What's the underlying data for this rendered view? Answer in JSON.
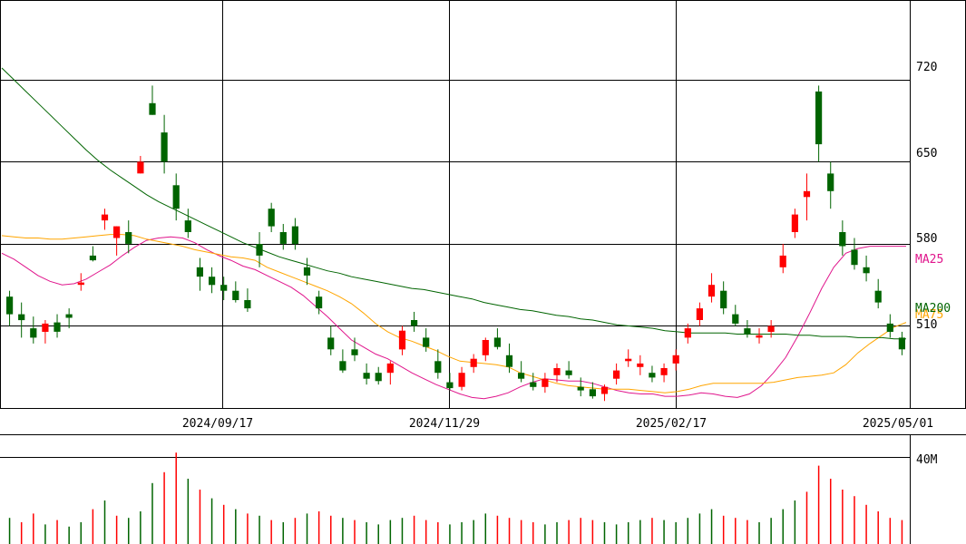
{
  "chart_data": [
    {
      "type": "candlestick",
      "title": "",
      "y_ticks": [
        510,
        580,
        650,
        720
      ],
      "y_range": [
        440,
        788
      ],
      "x_ticks": [
        "2024/09/17",
        "2024/11/29",
        "2025/02/17",
        "2025/05/01"
      ],
      "up_color": "#ff0000",
      "down_color": "#006400",
      "series": [
        {
          "name": "MA25",
          "color": "#e0158c",
          "values": [
            572,
            567,
            560,
            553,
            548,
            545,
            546,
            550,
            556,
            562,
            570,
            577,
            583,
            585,
            586,
            585,
            581,
            575,
            570,
            566,
            561,
            558,
            553,
            548,
            543,
            536,
            527,
            518,
            508,
            498,
            492,
            486,
            482,
            476,
            470,
            465,
            460,
            456,
            452,
            449,
            448,
            450,
            453,
            458,
            462,
            465,
            464,
            463,
            463,
            461,
            458,
            455,
            453,
            452,
            452,
            450,
            450,
            451,
            453,
            452,
            450,
            449,
            452,
            459,
            470,
            483,
            501,
            521,
            542,
            560,
            572,
            576,
            578,
            578,
            578,
            578
          ]
        },
        {
          "name": "MA75",
          "color": "#ffa500",
          "values": [
            587,
            586,
            585,
            585,
            584,
            584,
            585,
            586,
            587,
            588,
            588,
            587,
            584,
            582,
            580,
            578,
            575,
            573,
            571,
            569,
            568,
            566,
            560,
            556,
            552,
            548,
            544,
            540,
            535,
            529,
            521,
            512,
            505,
            500,
            497,
            493,
            489,
            484,
            480,
            479,
            478,
            477,
            475,
            470,
            467,
            464,
            461,
            459,
            458,
            457,
            456,
            456,
            456,
            455,
            454,
            453,
            454,
            456,
            459,
            461,
            461,
            461,
            461,
            461,
            462,
            464,
            466,
            467,
            468,
            470,
            477,
            487,
            495,
            502,
            509,
            513
          ]
        },
        {
          "name": "MA200",
          "color": "#006400",
          "values": [
            730,
            720,
            710,
            700,
            690,
            680,
            670,
            660,
            651,
            643,
            636,
            629,
            622,
            616,
            611,
            606,
            601,
            596,
            591,
            586,
            581,
            577,
            573,
            569,
            566,
            563,
            560,
            557,
            555,
            552,
            550,
            548,
            546,
            544,
            542,
            541,
            539,
            537,
            535,
            533,
            530,
            528,
            526,
            524,
            523,
            521,
            519,
            518,
            516,
            515,
            513,
            511,
            510,
            509,
            508,
            506,
            505,
            504,
            504,
            504,
            504,
            503,
            503,
            503,
            503,
            503,
            502,
            502,
            501,
            501,
            501,
            500,
            500,
            500,
            499,
            499
          ]
        }
      ],
      "labels": {
        "ma25": "MA25",
        "ma75": "MA75",
        "ma200": "MA200"
      },
      "candles": [
        {
          "o": 535,
          "h": 540,
          "l": 510,
          "c": 520
        },
        {
          "o": 520,
          "h": 530,
          "l": 500,
          "c": 515
        },
        {
          "o": 508,
          "h": 518,
          "l": 495,
          "c": 500
        },
        {
          "o": 505,
          "h": 515,
          "l": 495,
          "c": 512
        },
        {
          "o": 513,
          "h": 520,
          "l": 500,
          "c": 505
        },
        {
          "o": 520,
          "h": 525,
          "l": 508,
          "c": 517
        },
        {
          "o": 545,
          "h": 555,
          "l": 540,
          "c": 547
        },
        {
          "o": 570,
          "h": 578,
          "l": 565,
          "c": 566
        },
        {
          "o": 600,
          "h": 610,
          "l": 592,
          "c": 605
        },
        {
          "o": 585,
          "h": 595,
          "l": 570,
          "c": 595
        },
        {
          "o": 590,
          "h": 600,
          "l": 572,
          "c": 580
        },
        {
          "o": 640,
          "h": 655,
          "l": 640,
          "c": 650
        },
        {
          "o": 700,
          "h": 715,
          "l": 690,
          "c": 690
        },
        {
          "o": 675,
          "h": 690,
          "l": 640,
          "c": 650
        },
        {
          "o": 630,
          "h": 640,
          "l": 600,
          "c": 610
        },
        {
          "o": 600,
          "h": 610,
          "l": 585,
          "c": 590
        },
        {
          "o": 560,
          "h": 568,
          "l": 540,
          "c": 552
        },
        {
          "o": 552,
          "h": 560,
          "l": 538,
          "c": 545
        },
        {
          "o": 545,
          "h": 552,
          "l": 532,
          "c": 540
        },
        {
          "o": 540,
          "h": 548,
          "l": 530,
          "c": 532
        },
        {
          "o": 532,
          "h": 542,
          "l": 522,
          "c": 525
        },
        {
          "o": 580,
          "h": 590,
          "l": 560,
          "c": 570
        },
        {
          "o": 610,
          "h": 615,
          "l": 590,
          "c": 595
        },
        {
          "o": 590,
          "h": 597,
          "l": 575,
          "c": 580
        },
        {
          "o": 595,
          "h": 602,
          "l": 575,
          "c": 580
        },
        {
          "o": 560,
          "h": 568,
          "l": 545,
          "c": 553
        },
        {
          "o": 535,
          "h": 540,
          "l": 520,
          "c": 525
        },
        {
          "o": 500,
          "h": 510,
          "l": 485,
          "c": 490
        },
        {
          "o": 480,
          "h": 490,
          "l": 470,
          "c": 472
        },
        {
          "o": 490,
          "h": 500,
          "l": 480,
          "c": 485
        },
        {
          "o": 470,
          "h": 478,
          "l": 460,
          "c": 465
        },
        {
          "o": 470,
          "h": 475,
          "l": 460,
          "c": 463
        },
        {
          "o": 470,
          "h": 480,
          "l": 460,
          "c": 478
        },
        {
          "o": 490,
          "h": 510,
          "l": 485,
          "c": 506
        },
        {
          "o": 515,
          "h": 522,
          "l": 505,
          "c": 510
        },
        {
          "o": 500,
          "h": 508,
          "l": 488,
          "c": 492
        },
        {
          "o": 480,
          "h": 490,
          "l": 465,
          "c": 470
        },
        {
          "o": 462,
          "h": 470,
          "l": 455,
          "c": 457
        },
        {
          "o": 458,
          "h": 475,
          "l": 455,
          "c": 470
        },
        {
          "o": 475,
          "h": 486,
          "l": 470,
          "c": 482
        },
        {
          "o": 485,
          "h": 500,
          "l": 480,
          "c": 498
        },
        {
          "o": 500,
          "h": 508,
          "l": 490,
          "c": 492
        },
        {
          "o": 485,
          "h": 495,
          "l": 470,
          "c": 475
        },
        {
          "o": 470,
          "h": 480,
          "l": 462,
          "c": 465
        },
        {
          "o": 462,
          "h": 470,
          "l": 455,
          "c": 458
        },
        {
          "o": 458,
          "h": 470,
          "l": 453,
          "c": 465
        },
        {
          "o": 468,
          "h": 478,
          "l": 462,
          "c": 474
        },
        {
          "o": 472,
          "h": 480,
          "l": 465,
          "c": 468
        },
        {
          "o": 458,
          "h": 466,
          "l": 450,
          "c": 455
        },
        {
          "o": 456,
          "h": 462,
          "l": 448,
          "c": 450
        },
        {
          "o": 452,
          "h": 460,
          "l": 446,
          "c": 458
        },
        {
          "o": 465,
          "h": 478,
          "l": 460,
          "c": 472
        },
        {
          "o": 480,
          "h": 490,
          "l": 475,
          "c": 482
        },
        {
          "o": 475,
          "h": 485,
          "l": 468,
          "c": 478
        },
        {
          "o": 470,
          "h": 476,
          "l": 462,
          "c": 466
        },
        {
          "o": 468,
          "h": 478,
          "l": 462,
          "c": 474
        },
        {
          "o": 478,
          "h": 490,
          "l": 472,
          "c": 485
        },
        {
          "o": 500,
          "h": 512,
          "l": 495,
          "c": 508
        },
        {
          "o": 515,
          "h": 530,
          "l": 510,
          "c": 525
        },
        {
          "o": 535,
          "h": 555,
          "l": 530,
          "c": 545
        },
        {
          "o": 540,
          "h": 548,
          "l": 520,
          "c": 525
        },
        {
          "o": 520,
          "h": 528,
          "l": 510,
          "c": 512
        },
        {
          "o": 508,
          "h": 515,
          "l": 500,
          "c": 503
        },
        {
          "o": 500,
          "h": 508,
          "l": 495,
          "c": 502
        },
        {
          "o": 505,
          "h": 515,
          "l": 500,
          "c": 510
        },
        {
          "o": 560,
          "h": 580,
          "l": 555,
          "c": 570
        },
        {
          "o": 590,
          "h": 610,
          "l": 585,
          "c": 605
        },
        {
          "o": 620,
          "h": 640,
          "l": 600,
          "c": 625
        },
        {
          "o": 710,
          "h": 715,
          "l": 650,
          "c": 665
        },
        {
          "o": 640,
          "h": 650,
          "l": 610,
          "c": 625
        },
        {
          "o": 590,
          "h": 600,
          "l": 570,
          "c": 578
        },
        {
          "o": 575,
          "h": 585,
          "l": 558,
          "c": 562
        },
        {
          "o": 560,
          "h": 570,
          "l": 548,
          "c": 555
        },
        {
          "o": 540,
          "h": 550,
          "l": 525,
          "c": 530
        },
        {
          "o": 512,
          "h": 520,
          "l": 500,
          "c": 505
        },
        {
          "o": 500,
          "h": 505,
          "l": 485,
          "c": 490
        }
      ]
    },
    {
      "type": "bar",
      "title": "",
      "y_ticks": [
        40
      ],
      "y_tick_labels": [
        "40M"
      ],
      "y_range": [
        0,
        50
      ],
      "values": [
        12,
        10,
        14,
        9,
        11,
        8,
        10,
        16,
        20,
        13,
        12,
        15,
        28,
        33,
        42,
        30,
        25,
        21,
        18,
        16,
        14,
        13,
        11,
        10,
        12,
        14,
        15,
        13,
        12,
        11,
        10,
        9,
        11,
        12,
        13,
        11,
        10,
        9,
        10,
        11,
        14,
        13,
        12,
        11,
        10,
        9,
        10,
        11,
        12,
        11,
        10,
        9,
        10,
        11,
        12,
        11,
        10,
        12,
        14,
        16,
        13,
        12,
        11,
        10,
        12,
        16,
        20,
        24,
        36,
        30,
        25,
        22,
        18,
        15,
        12,
        11
      ],
      "colors": [
        "#006400",
        "#ff0000",
        "#ff0000",
        "#006400",
        "#ff0000",
        "#006400",
        "#006400",
        "#ff0000",
        "#006400",
        "#ff0000",
        "#006400",
        "#006400",
        "#006400",
        "#ff0000",
        "#ff0000",
        "#006400",
        "#ff0000",
        "#006400",
        "#ff0000",
        "#006400",
        "#ff0000",
        "#006400",
        "#ff0000",
        "#006400",
        "#ff0000",
        "#006400",
        "#ff0000",
        "#ff0000",
        "#006400",
        "#ff0000",
        "#006400",
        "#006400",
        "#006400",
        "#006400",
        "#ff0000",
        "#ff0000",
        "#ff0000",
        "#006400",
        "#006400",
        "#006400",
        "#006400",
        "#ff0000",
        "#ff0000",
        "#ff0000",
        "#ff0000",
        "#006400",
        "#006400",
        "#ff0000",
        "#ff0000",
        "#ff0000",
        "#006400",
        "#006400",
        "#006400",
        "#006400",
        "#ff0000",
        "#006400",
        "#006400",
        "#006400",
        "#006400",
        "#006400",
        "#ff0000",
        "#ff0000",
        "#ff0000",
        "#006400",
        "#006400",
        "#006400",
        "#006400",
        "#ff0000",
        "#ff0000",
        "#ff0000",
        "#ff0000",
        "#ff0000",
        "#ff0000",
        "#ff0000",
        "#ff0000",
        "#ff0000"
      ]
    }
  ]
}
